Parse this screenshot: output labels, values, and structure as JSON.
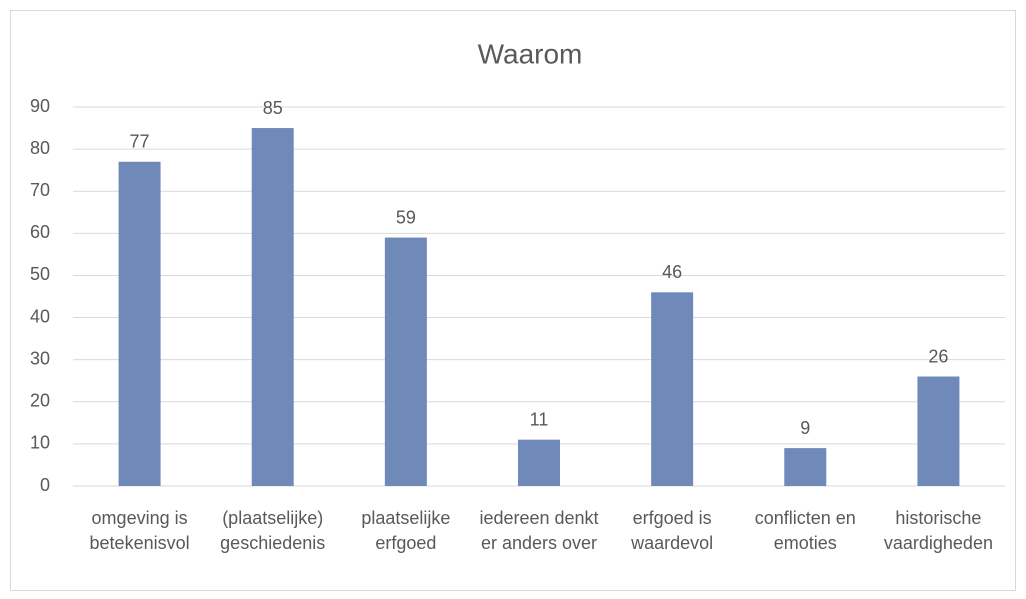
{
  "chart_data": {
    "type": "bar",
    "title": "Waarom",
    "categories": [
      "omgeving is betekenisvol",
      "(plaatselijke) geschiedenis",
      "plaatselijke erfgoed",
      "iedereen denkt er anders over",
      "erfgoed is waardevol",
      "conflicten en emoties",
      "historische vaardigheden"
    ],
    "values": [
      77,
      85,
      59,
      11,
      46,
      9,
      26
    ],
    "color": "#6f8ab8",
    "ylim": [
      0,
      90
    ],
    "yticks": [
      0,
      10,
      20,
      30,
      40,
      50,
      60,
      70,
      80,
      90
    ],
    "grid": true
  }
}
